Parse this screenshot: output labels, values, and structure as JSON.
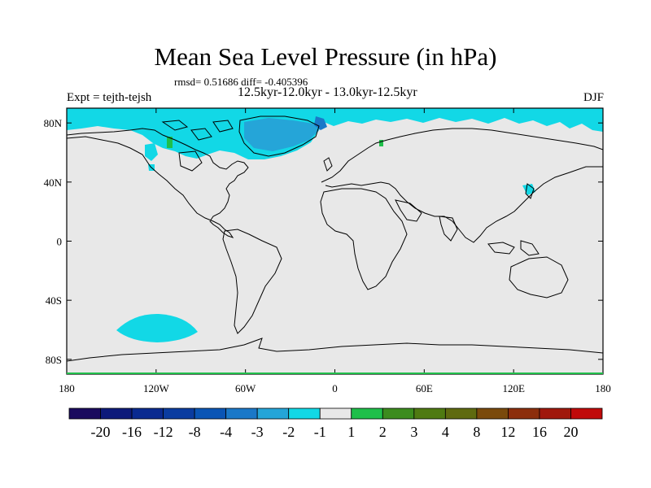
{
  "title": "Mean Sea Level Pressure (in hPa)",
  "stats_line": "rmsd= 0.51686 diff= -0.405396",
  "period_line": "12.5kyr-12.0kyr - 13.0kyr-12.5kyr",
  "experiment": "Expt = tejth-tejsh",
  "season": "DJF",
  "map": {
    "background_color": "#e8e8e8",
    "coast_color": "#000000",
    "lon_ticks": [
      {
        "lon": -180,
        "label": "180"
      },
      {
        "lon": -120,
        "label": "120W"
      },
      {
        "lon": -60,
        "label": "60W"
      },
      {
        "lon": 0,
        "label": "0"
      },
      {
        "lon": 60,
        "label": "60E"
      },
      {
        "lon": 120,
        "label": "120E"
      },
      {
        "lon": 180,
        "label": "180"
      }
    ],
    "lat_ticks": [
      {
        "lat": 80,
        "label": "80N"
      },
      {
        "lat": 40,
        "label": "40N"
      },
      {
        "lat": 0,
        "label": "0"
      },
      {
        "lat": -40,
        "label": "40S"
      },
      {
        "lat": -80,
        "label": "80S"
      }
    ]
  },
  "colorbar": {
    "colors": [
      "#1a0a5e",
      "#0d1a7a",
      "#0a2a90",
      "#0a3ca0",
      "#0a55b5",
      "#1a78c8",
      "#25a5d8",
      "#12d8e6",
      "#e8e8e8",
      "#1fbf4a",
      "#3c8c1e",
      "#4f7a12",
      "#5f6a10",
      "#7a4a0c",
      "#8c2e0c",
      "#a0180c",
      "#c00a0a"
    ],
    "labels": [
      "-20",
      "-16",
      "-12",
      "-8",
      "-4",
      "-3",
      "-2",
      "-1",
      "1",
      "2",
      "3",
      "4",
      "8",
      "12",
      "16",
      "20"
    ]
  }
}
